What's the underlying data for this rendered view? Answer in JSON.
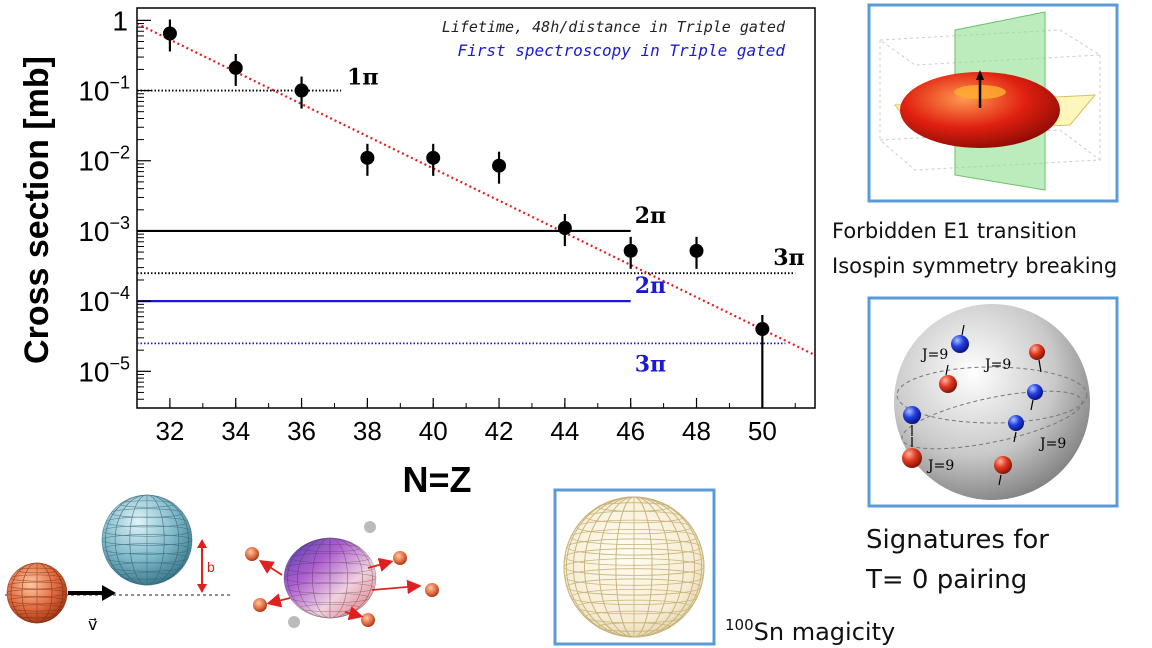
{
  "chart_data": {
    "type": "scatter",
    "y_scale": "log",
    "xlabel": "N=Z",
    "ylabel": "Cross section [mb]",
    "xlim": [
      31,
      51.6
    ],
    "ylim": [
      3e-06,
      1.5
    ],
    "x_ticks": [
      "32",
      "34",
      "36",
      "38",
      "40",
      "42",
      "44",
      "46",
      "48",
      "50"
    ],
    "y_ticks": [
      {
        "base": "1",
        "exp": ""
      },
      {
        "base": "10",
        "exp": "−1"
      },
      {
        "base": "10",
        "exp": "−2"
      },
      {
        "base": "10",
        "exp": "−3"
      },
      {
        "base": "10",
        "exp": "−4"
      },
      {
        "base": "10",
        "exp": "−5"
      }
    ],
    "points": [
      {
        "x": 32,
        "y": 0.65
      },
      {
        "x": 34,
        "y": 0.21
      },
      {
        "x": 36,
        "y": 0.1
      },
      {
        "x": 38,
        "y": 0.011
      },
      {
        "x": 40,
        "y": 0.011
      },
      {
        "x": 42,
        "y": 0.0085
      },
      {
        "x": 44,
        "y": 0.0011
      },
      {
        "x": 46,
        "y": 0.00052
      },
      {
        "x": 48,
        "y": 0.00052
      },
      {
        "x": 50,
        "y": 4e-05
      }
    ],
    "trend_line": {
      "x": [
        31,
        51.6
      ],
      "y": [
        0.9,
        1.7e-05
      ],
      "color": "#e02020"
    },
    "thresholds": [
      {
        "label": "1π",
        "y": 0.1,
        "x_end": 37.2,
        "color": "#000000",
        "style": "dotted"
      },
      {
        "label": "2π",
        "y": 0.001,
        "x_end": 46,
        "color": "#000000",
        "style": "solid"
      },
      {
        "label": "3π",
        "y": 0.00025,
        "x_end": 51,
        "color": "#000000",
        "style": "dotted"
      },
      {
        "label": "2π",
        "y": 0.0001,
        "x_end": 46,
        "color": "#1a1ad6",
        "style": "solid"
      },
      {
        "label": "3π",
        "y": 2.5e-05,
        "x_end": 50.7,
        "color": "#1a1ad6",
        "style": "dotted"
      }
    ],
    "annotations": [
      {
        "text": "Lifetime, 48h/distance in Triple gated",
        "color": "#222222"
      },
      {
        "text": "First spectroscopy in Triple gated",
        "color": "#1a1ad6"
      }
    ]
  },
  "captions": {
    "e1_line1": "Forbidden E1 transition",
    "e1_line2": "Isospin symmetry breaking",
    "t0_line1": "Signatures for",
    "t0_line2": "T= 0 pairing",
    "sn_sup": "100",
    "sn_text": "Sn magicity"
  },
  "illustrations": {
    "pairing_labels": [
      "J=9",
      "J=9",
      "J=9",
      "J=9"
    ],
    "reaction_labels": {
      "impact": "b",
      "velocity": "v⃗"
    }
  },
  "colors": {
    "frame": "#5b9bd5",
    "proton": "#d42020",
    "neutron": "#1f3fd6",
    "trend": "#e02020"
  }
}
